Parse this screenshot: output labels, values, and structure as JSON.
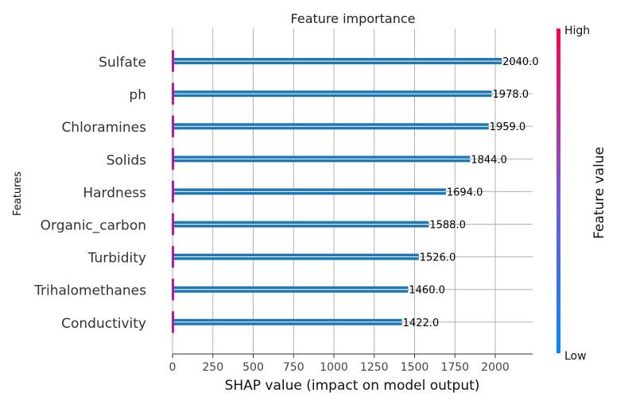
{
  "chart_data": {
    "type": "bar",
    "orientation": "horizontal",
    "title": "Feature importance",
    "xlabel": "SHAP value (impact on model output)",
    "ylabel": "Features",
    "categories": [
      "Sulfate",
      "ph",
      "Chloramines",
      "Solids",
      "Hardness",
      "Organic_carbon",
      "Turbidity",
      "Trihalomethanes",
      "Conductivity"
    ],
    "values": [
      2040,
      1978,
      1959,
      1844,
      1694,
      1588,
      1526,
      1460,
      1422
    ],
    "value_labels": [
      "2040.0",
      "1978.0",
      "1959.0",
      "1844.0",
      "1694.0",
      "1588.0",
      "1526.0",
      "1460.0",
      "1422.0"
    ],
    "xlim": [
      0,
      2230
    ],
    "xticks": [
      0,
      250,
      500,
      750,
      1000,
      1250,
      1500,
      1750,
      2000
    ],
    "grid": true,
    "bar_color": "#1f77b4",
    "colorbar": {
      "label": "Feature value",
      "high": "High",
      "low": "Low",
      "colors": [
        "#008afb",
        "#7d56d6",
        "#ff0052"
      ]
    }
  }
}
